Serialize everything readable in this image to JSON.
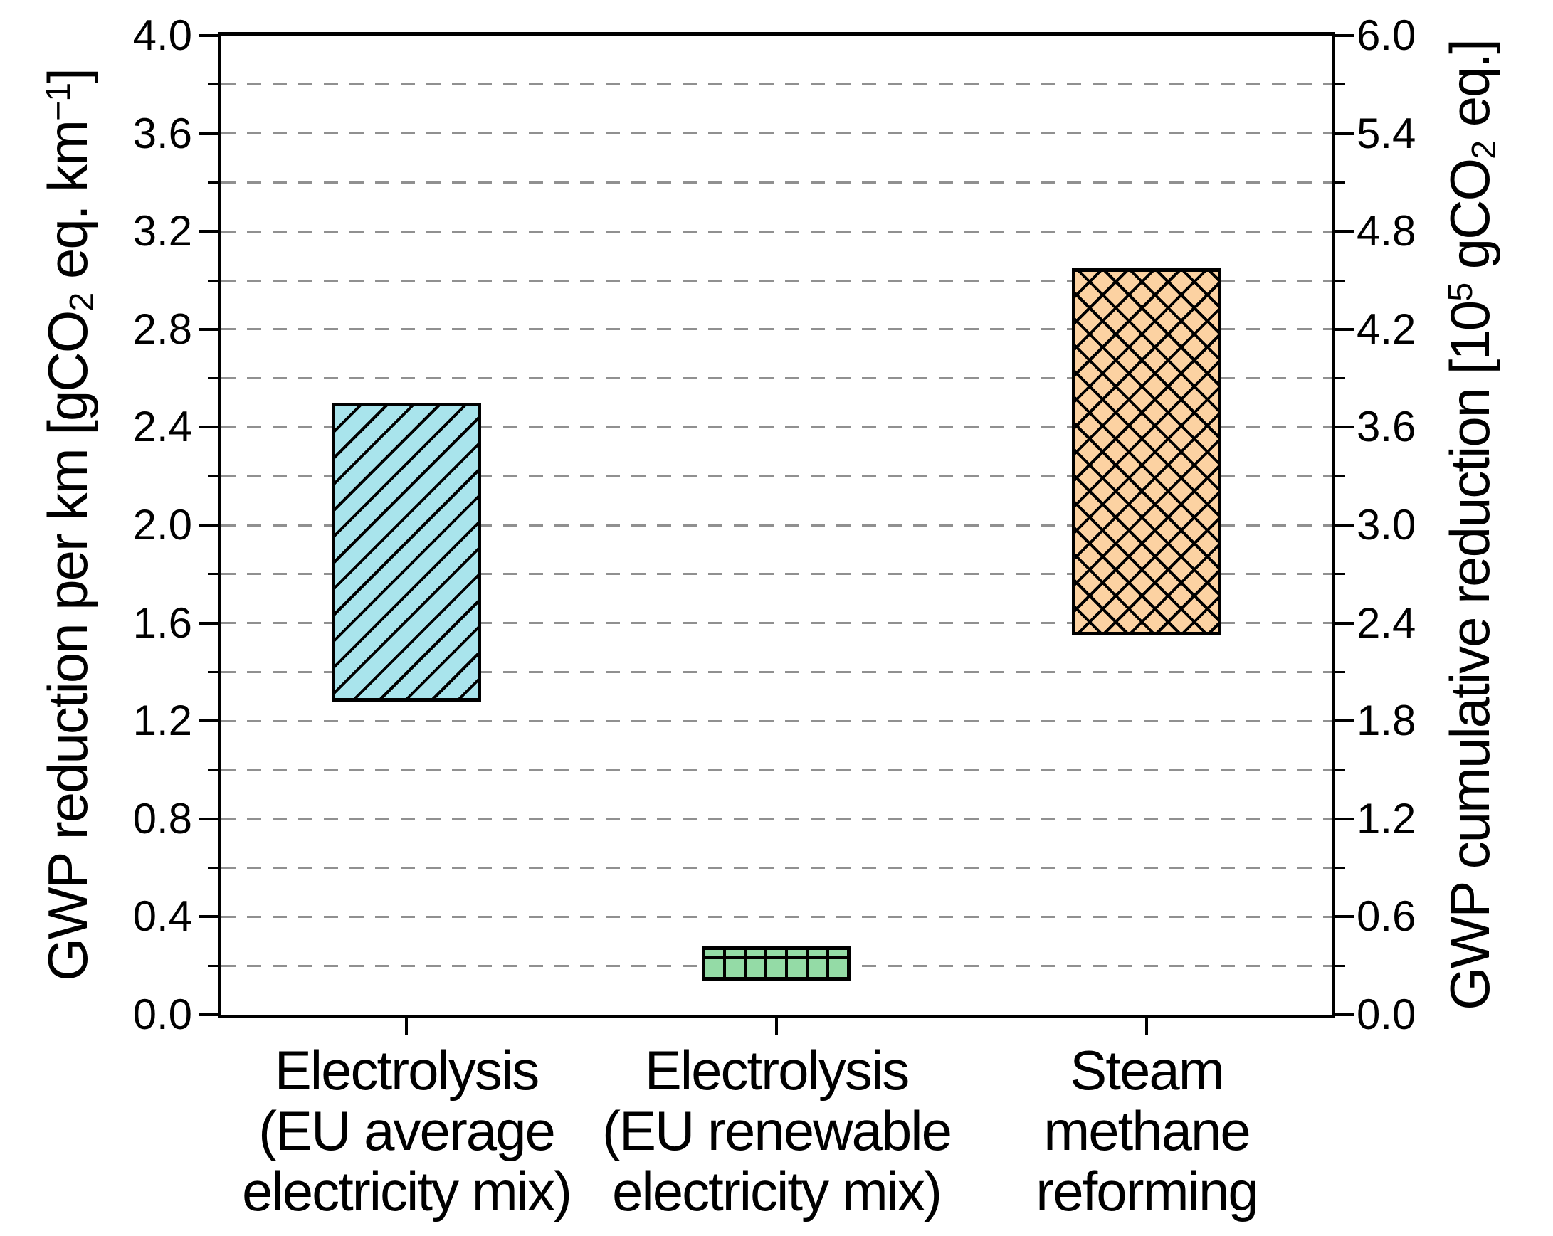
{
  "figure": {
    "background": "#ffffff",
    "axis_color": "#000000",
    "gridline_color": "#909090",
    "left_axis": {
      "title_text": "GWP reduction per km [gCO2 eq. km-1]",
      "title_parts": [
        {
          "t": "GWP reduction per km [gCO"
        },
        {
          "t": "2",
          "script": "sub"
        },
        {
          "t": " eq. km"
        },
        {
          "t": "−1",
          "script": "sup"
        },
        {
          "t": "]"
        }
      ],
      "min": 0.0,
      "max": 4.0,
      "major_step": 0.4,
      "minor_step": 0.2,
      "tick_labels": [
        "0.0",
        "0.4",
        "0.8",
        "1.2",
        "1.6",
        "2.0",
        "2.4",
        "2.8",
        "3.2",
        "3.6",
        "4.0"
      ]
    },
    "right_axis": {
      "title_text": "GWP cumulative reduction [105 gCO2 eq.]",
      "title_parts": [
        {
          "t": "GWP cumulative reduction [10"
        },
        {
          "t": "5",
          "script": "sup"
        },
        {
          "t": " gCO"
        },
        {
          "t": "2",
          "script": "sub"
        },
        {
          "t": " eq.]"
        }
      ],
      "min": 0.0,
      "max": 6.0,
      "major_step": 0.6,
      "minor_step": 0.3,
      "tick_labels": [
        "0.0",
        "0.6",
        "1.2",
        "1.8",
        "2.4",
        "3.0",
        "3.6",
        "4.2",
        "4.8",
        "5.4",
        "6.0"
      ]
    }
  },
  "chart_data": {
    "type": "bar",
    "subtype": "floating-range-bars",
    "orientation": "vertical",
    "title": "",
    "legend": "none",
    "grid": "horizontal-dashed",
    "ylabel_left": "GWP reduction per km [gCO₂ eq. km⁻¹]",
    "ylabel_right": "GWP cumulative reduction [10⁵ gCO₂ eq.]",
    "ylim_left": [
      0.0,
      4.0
    ],
    "ylim_right": [
      0.0,
      6.0
    ],
    "categories": [
      "Electrolysis (EU average electricity mix)",
      "Electrolysis (EU renewable electricity mix)",
      "Steam methane reforming"
    ],
    "bars": [
      {
        "category_lines": [
          "Electrolysis",
          "(EU average",
          "electricity mix)"
        ],
        "low": 1.28,
        "high": 2.5,
        "low_right_axis": 1.92,
        "high_right_axis": 3.75,
        "fill": "#a9e4ec",
        "hatch": "diagonal-up",
        "border": "#000000"
      },
      {
        "category_lines": [
          "Electrolysis",
          "(EU renewable",
          "electricity mix)"
        ],
        "low": 0.14,
        "high": 0.28,
        "low_right_axis": 0.21,
        "high_right_axis": 0.42,
        "fill": "#94dba6",
        "hatch": "grid",
        "border": "#000000"
      },
      {
        "category_lines": [
          "Steam",
          "methane",
          "reforming"
        ],
        "low": 1.55,
        "high": 3.05,
        "low_right_axis": 2.33,
        "high_right_axis": 4.58,
        "fill": "#fcd2a2",
        "hatch": "cross-diagonal",
        "border": "#000000"
      }
    ]
  }
}
